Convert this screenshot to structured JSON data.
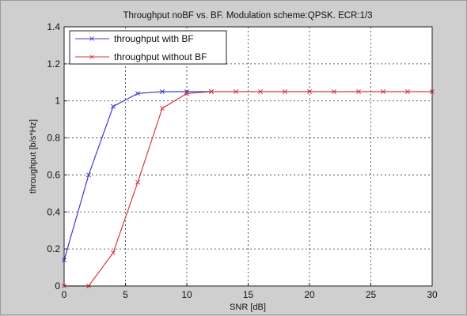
{
  "chart_data": {
    "type": "line",
    "title": "Throughput noBF vs. BF. Modulation scheme:QPSK. ECR:1/3",
    "xlabel": "SNR [dB]",
    "ylabel": "throughput [b/s*Hz]",
    "xlim": [
      0,
      30
    ],
    "ylim": [
      0,
      1.4
    ],
    "xticks": [
      0,
      5,
      10,
      15,
      20,
      25,
      30
    ],
    "yticks": [
      0,
      0.2,
      0.4,
      0.6,
      0.8,
      1,
      1.2,
      1.4
    ],
    "xtick_labels": [
      "0",
      "5",
      "10",
      "15",
      "20",
      "25",
      "30"
    ],
    "ytick_labels": [
      "0",
      "0.2",
      "0.4",
      "0.6",
      "0.8",
      "1",
      "1.2",
      "1.4"
    ],
    "grid": true,
    "legend_position": "top-left",
    "series": [
      {
        "name": "throughput with BF",
        "color": "#3c3ccf",
        "marker": "x",
        "x": [
          0,
          2,
          4,
          6,
          8,
          10,
          12
        ],
        "y": [
          0.14,
          0.6,
          0.97,
          1.04,
          1.05,
          1.05,
          1.05
        ]
      },
      {
        "name": "throughput without BF",
        "color": "#d03c3c",
        "marker": "x",
        "x": [
          0,
          2,
          4,
          6,
          8,
          10,
          12,
          14,
          16,
          18,
          20,
          22,
          24,
          26,
          28,
          30
        ],
        "y": [
          0,
          0,
          0.18,
          0.56,
          0.96,
          1.04,
          1.05,
          1.05,
          1.05,
          1.05,
          1.05,
          1.05,
          1.05,
          1.05,
          1.05,
          1.05
        ]
      }
    ]
  }
}
